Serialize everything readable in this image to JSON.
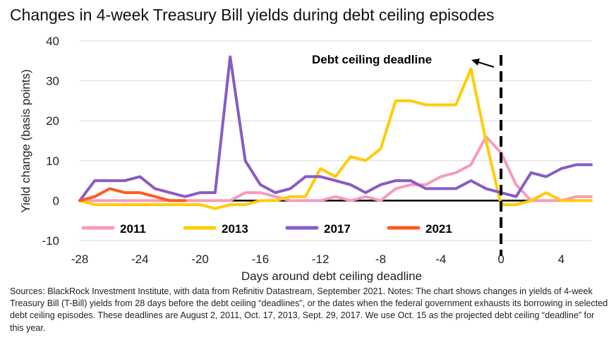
{
  "title": "Changes in 4-week Treasury Bill yields during debt ceiling episodes",
  "source": "Sources: BlackRock Investment Institute, with data from Refinitiv Datastream, September 2021. Notes: The chart shows changes in yields of 4-week Treasury Bill (T-Bill) yields from 28 days before the debt ceiling “deadlines”, or the dates when the federal government exhausts its borrowing in selected debt ceiling episodes. These deadlines are August 2, 2011, Oct. 17, 2013, Sept. 29, 2017. We use Oct. 15 as the projected debt ceiling “deadline” for this year.",
  "chart_data": {
    "type": "line",
    "xlabel": "Days around debt ceiling deadline",
    "ylabel": "Yield change (basis points)",
    "xlim": [
      -28,
      6
    ],
    "ylim": [
      -10,
      40
    ],
    "xticks": [
      -28,
      -24,
      -20,
      -16,
      -12,
      -8,
      -4,
      0,
      4
    ],
    "yticks": [
      -10,
      0,
      10,
      20,
      30,
      40
    ],
    "grid": "horizontal",
    "legend_position": "bottom",
    "annotation": {
      "text": "Debt ceiling deadline",
      "x": 0
    },
    "series": [
      {
        "name": "2011",
        "color": "#f79ac0",
        "x": [
          -28,
          -27,
          -26,
          -25,
          -24,
          -23,
          -22,
          -21,
          -20,
          -19,
          -18,
          -17,
          -16,
          -15,
          -14,
          -13,
          -12,
          -11,
          -10,
          -9,
          -8,
          -7,
          -6,
          -5,
          -4,
          -3,
          -2,
          -1,
          0,
          1,
          2,
          3,
          4,
          5,
          6
        ],
        "y": [
          0,
          0,
          0,
          0,
          0,
          0,
          0,
          0,
          0,
          0,
          0,
          2,
          2,
          1,
          0,
          0,
          0,
          1,
          0,
          1,
          0,
          3,
          4,
          4,
          6,
          7,
          9,
          16,
          12,
          4,
          0,
          0,
          0,
          1,
          1
        ]
      },
      {
        "name": "2013",
        "color": "#ffcc00",
        "x": [
          -28,
          -27,
          -26,
          -25,
          -24,
          -23,
          -22,
          -21,
          -20,
          -19,
          -18,
          -17,
          -16,
          -15,
          -14,
          -13,
          -12,
          -11,
          -10,
          -9,
          -8,
          -7,
          -6,
          -5,
          -4,
          -3,
          -2,
          -1,
          0,
          1,
          2,
          3,
          4,
          5,
          6
        ],
        "y": [
          0,
          -1,
          -1,
          -1,
          -1,
          -1,
          -1,
          -1,
          -1,
          -2,
          -1,
          -1,
          0,
          0,
          1,
          1,
          8,
          6,
          11,
          10,
          13,
          25,
          25,
          24,
          24,
          24,
          33,
          15,
          -1,
          -1,
          0,
          2,
          0,
          0,
          0
        ]
      },
      {
        "name": "2017",
        "color": "#8a5bc2",
        "x": [
          -28,
          -27,
          -26,
          -25,
          -24,
          -23,
          -22,
          -21,
          -20,
          -19,
          -18,
          -17,
          -16,
          -15,
          -14,
          -13,
          -12,
          -11,
          -10,
          -9,
          -8,
          -7,
          -6,
          -5,
          -4,
          -3,
          -2,
          -1,
          0,
          1,
          2,
          3,
          4,
          5,
          6
        ],
        "y": [
          0,
          5,
          5,
          5,
          6,
          3,
          2,
          1,
          2,
          2,
          36,
          10,
          4,
          2,
          3,
          6,
          6,
          5,
          4,
          2,
          4,
          5,
          5,
          3,
          3,
          3,
          5,
          3,
          2,
          1,
          7,
          6,
          8,
          9,
          9
        ]
      },
      {
        "name": "2021",
        "color": "#ff5a1f",
        "x": [
          -28,
          -27,
          -26,
          -25,
          -24,
          -23,
          -22,
          -21
        ],
        "y": [
          0,
          1,
          3,
          2,
          2,
          1,
          0,
          0
        ]
      }
    ]
  }
}
